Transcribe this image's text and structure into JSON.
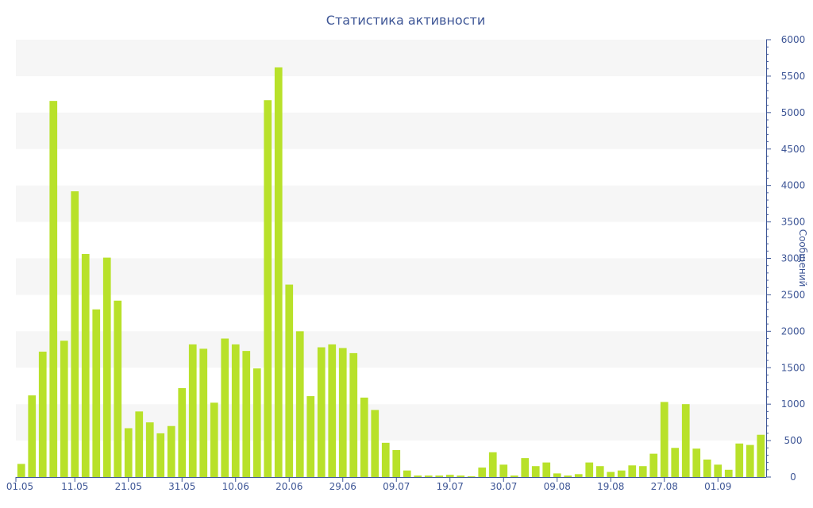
{
  "chart_data": {
    "type": "bar",
    "title": "Статистика активности",
    "ylabel": "Сообщений",
    "xlabel": "",
    "ylim": [
      0,
      6000
    ],
    "ytick_values": [
      0,
      500,
      1000,
      1500,
      2000,
      2500,
      3000,
      3500,
      4000,
      4500,
      5000,
      5500,
      6000
    ],
    "ytick_labels": [
      "0",
      "500",
      "1000",
      "1500",
      "2000",
      "2500",
      "3000",
      "3500",
      "4000",
      "4500",
      "5000",
      "5500",
      "6000"
    ],
    "y_axis_side": "right",
    "grid": "alternating horizontal bands",
    "x_tick_labels": [
      {
        "label": "01.05",
        "index": 0
      },
      {
        "label": "11.05",
        "index": 5
      },
      {
        "label": "21.05",
        "index": 10
      },
      {
        "label": "31.05",
        "index": 15
      },
      {
        "label": "10.06",
        "index": 20
      },
      {
        "label": "20.06",
        "index": 25
      },
      {
        "label": "29.06",
        "index": 30
      },
      {
        "label": "09.07",
        "index": 35
      },
      {
        "label": "19.07",
        "index": 40
      },
      {
        "label": "30.07",
        "index": 45
      },
      {
        "label": "09.08",
        "index": 50
      },
      {
        "label": "19.08",
        "index": 55
      },
      {
        "label": "27.08",
        "index": 60
      },
      {
        "label": "01.09",
        "index": 65
      }
    ],
    "values": [
      180,
      1120,
      1720,
      5160,
      1870,
      3920,
      3060,
      2300,
      3010,
      2420,
      670,
      900,
      750,
      600,
      700,
      1220,
      1820,
      1760,
      1020,
      1900,
      1820,
      1730,
      1490,
      5170,
      5620,
      2640,
      2000,
      1110,
      1780,
      1820,
      1770,
      1700,
      1090,
      920,
      470,
      370,
      90,
      20,
      20,
      20,
      30,
      20,
      10,
      130,
      340,
      170,
      20,
      260,
      150,
      200,
      50,
      20,
      40,
      200,
      150,
      70,
      90,
      160,
      150,
      320,
      1030,
      400,
      1000,
      390,
      240,
      170,
      100,
      460,
      440,
      580
    ],
    "colors": {
      "bar": "#b8e12a",
      "text": "#3e5696",
      "band": "#f6f6f6",
      "axis": "#3e5696"
    }
  }
}
